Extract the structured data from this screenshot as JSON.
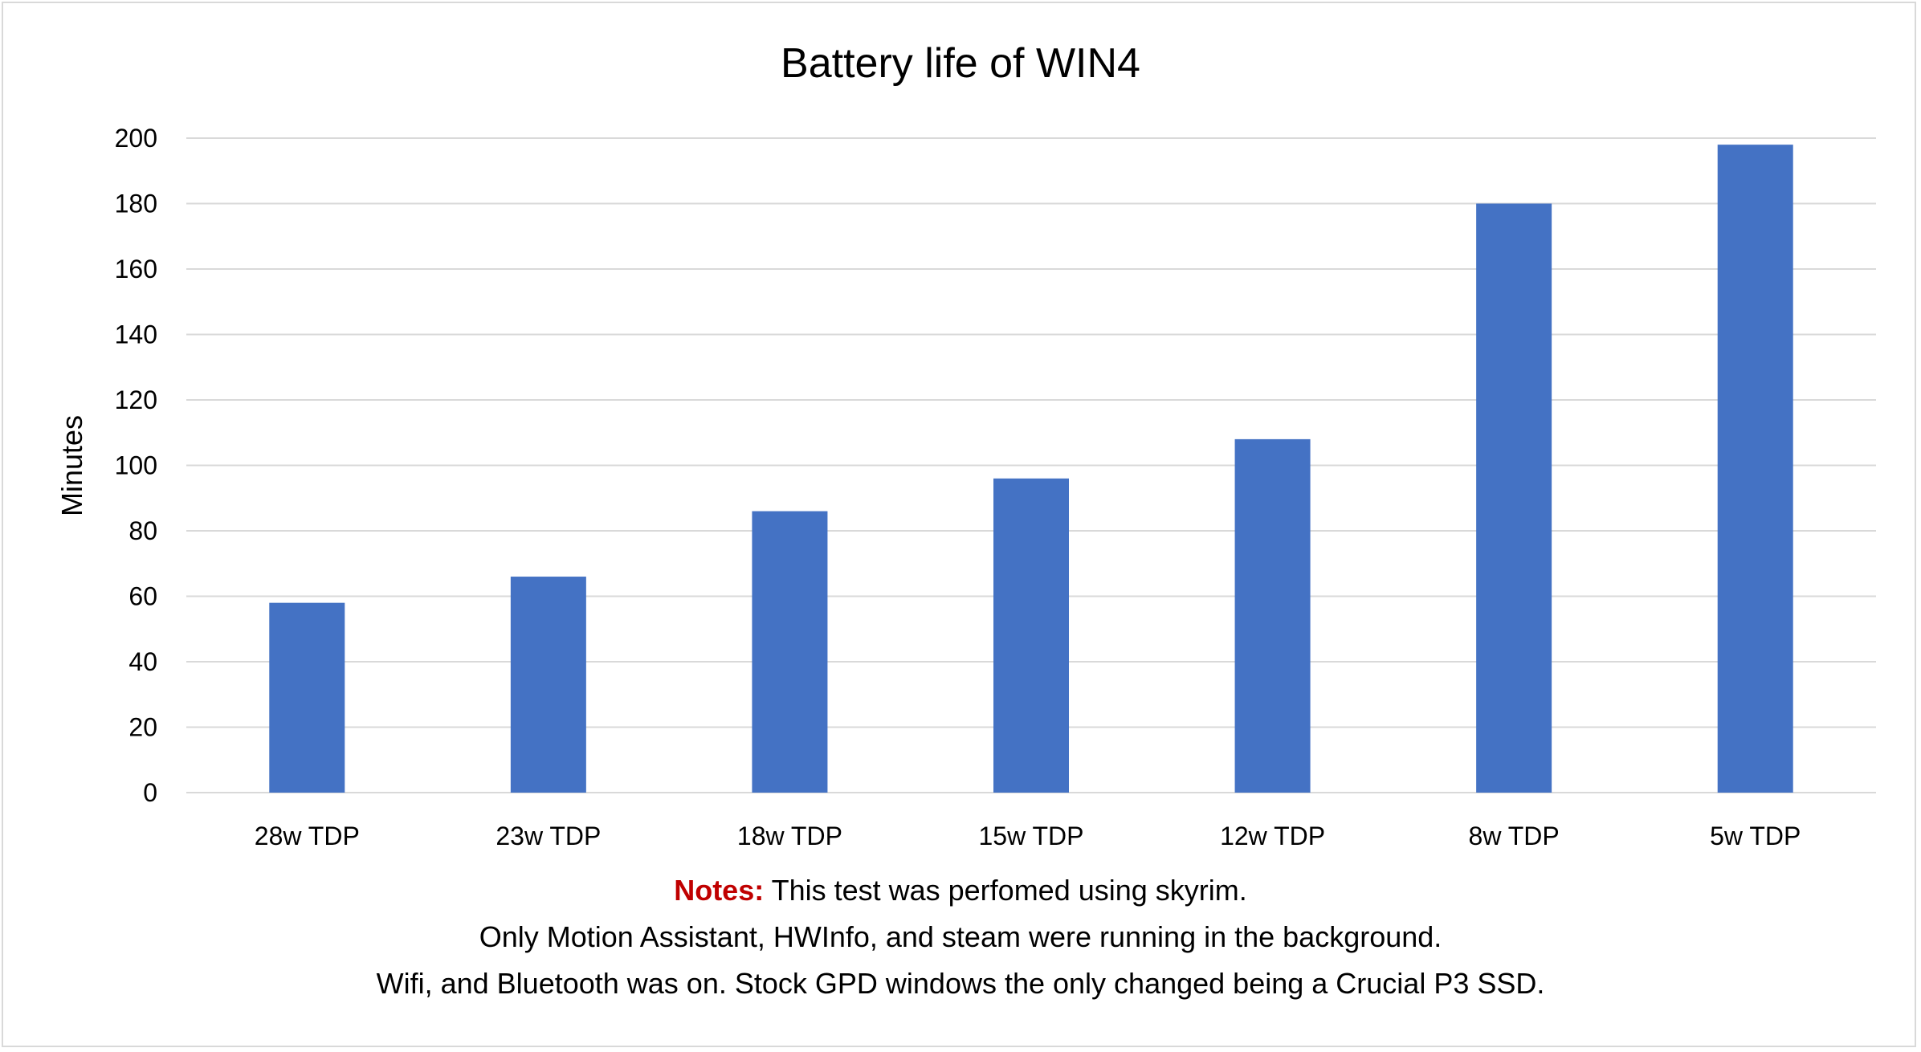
{
  "chart_data": {
    "type": "bar",
    "title": "Battery life of WIN4",
    "ylabel": "Minutes",
    "xlabel": "",
    "categories": [
      "28w TDP",
      "23w TDP",
      "18w TDP",
      "15w TDP",
      "12w TDP",
      "8w TDP",
      "5w TDP"
    ],
    "values": [
      58,
      66,
      86,
      96,
      108,
      180,
      198
    ],
    "ylim": [
      0,
      200
    ],
    "yticks": [
      0,
      20,
      40,
      60,
      80,
      100,
      120,
      140,
      160,
      180,
      200
    ],
    "grid": true,
    "legend": "none",
    "bar_color": "#4472c4",
    "grid_color": "#d9d9d9"
  },
  "notes": {
    "label": "Notes:",
    "line1": "This test was perfomed using skyrim.",
    "line2": "Only Motion Assistant, HWInfo, and steam were running in the background.",
    "line3": "Wifi, and Bluetooth was on.  Stock GPD windows the only changed being a Crucial P3 SSD.",
    "label_color": "#c00000"
  }
}
